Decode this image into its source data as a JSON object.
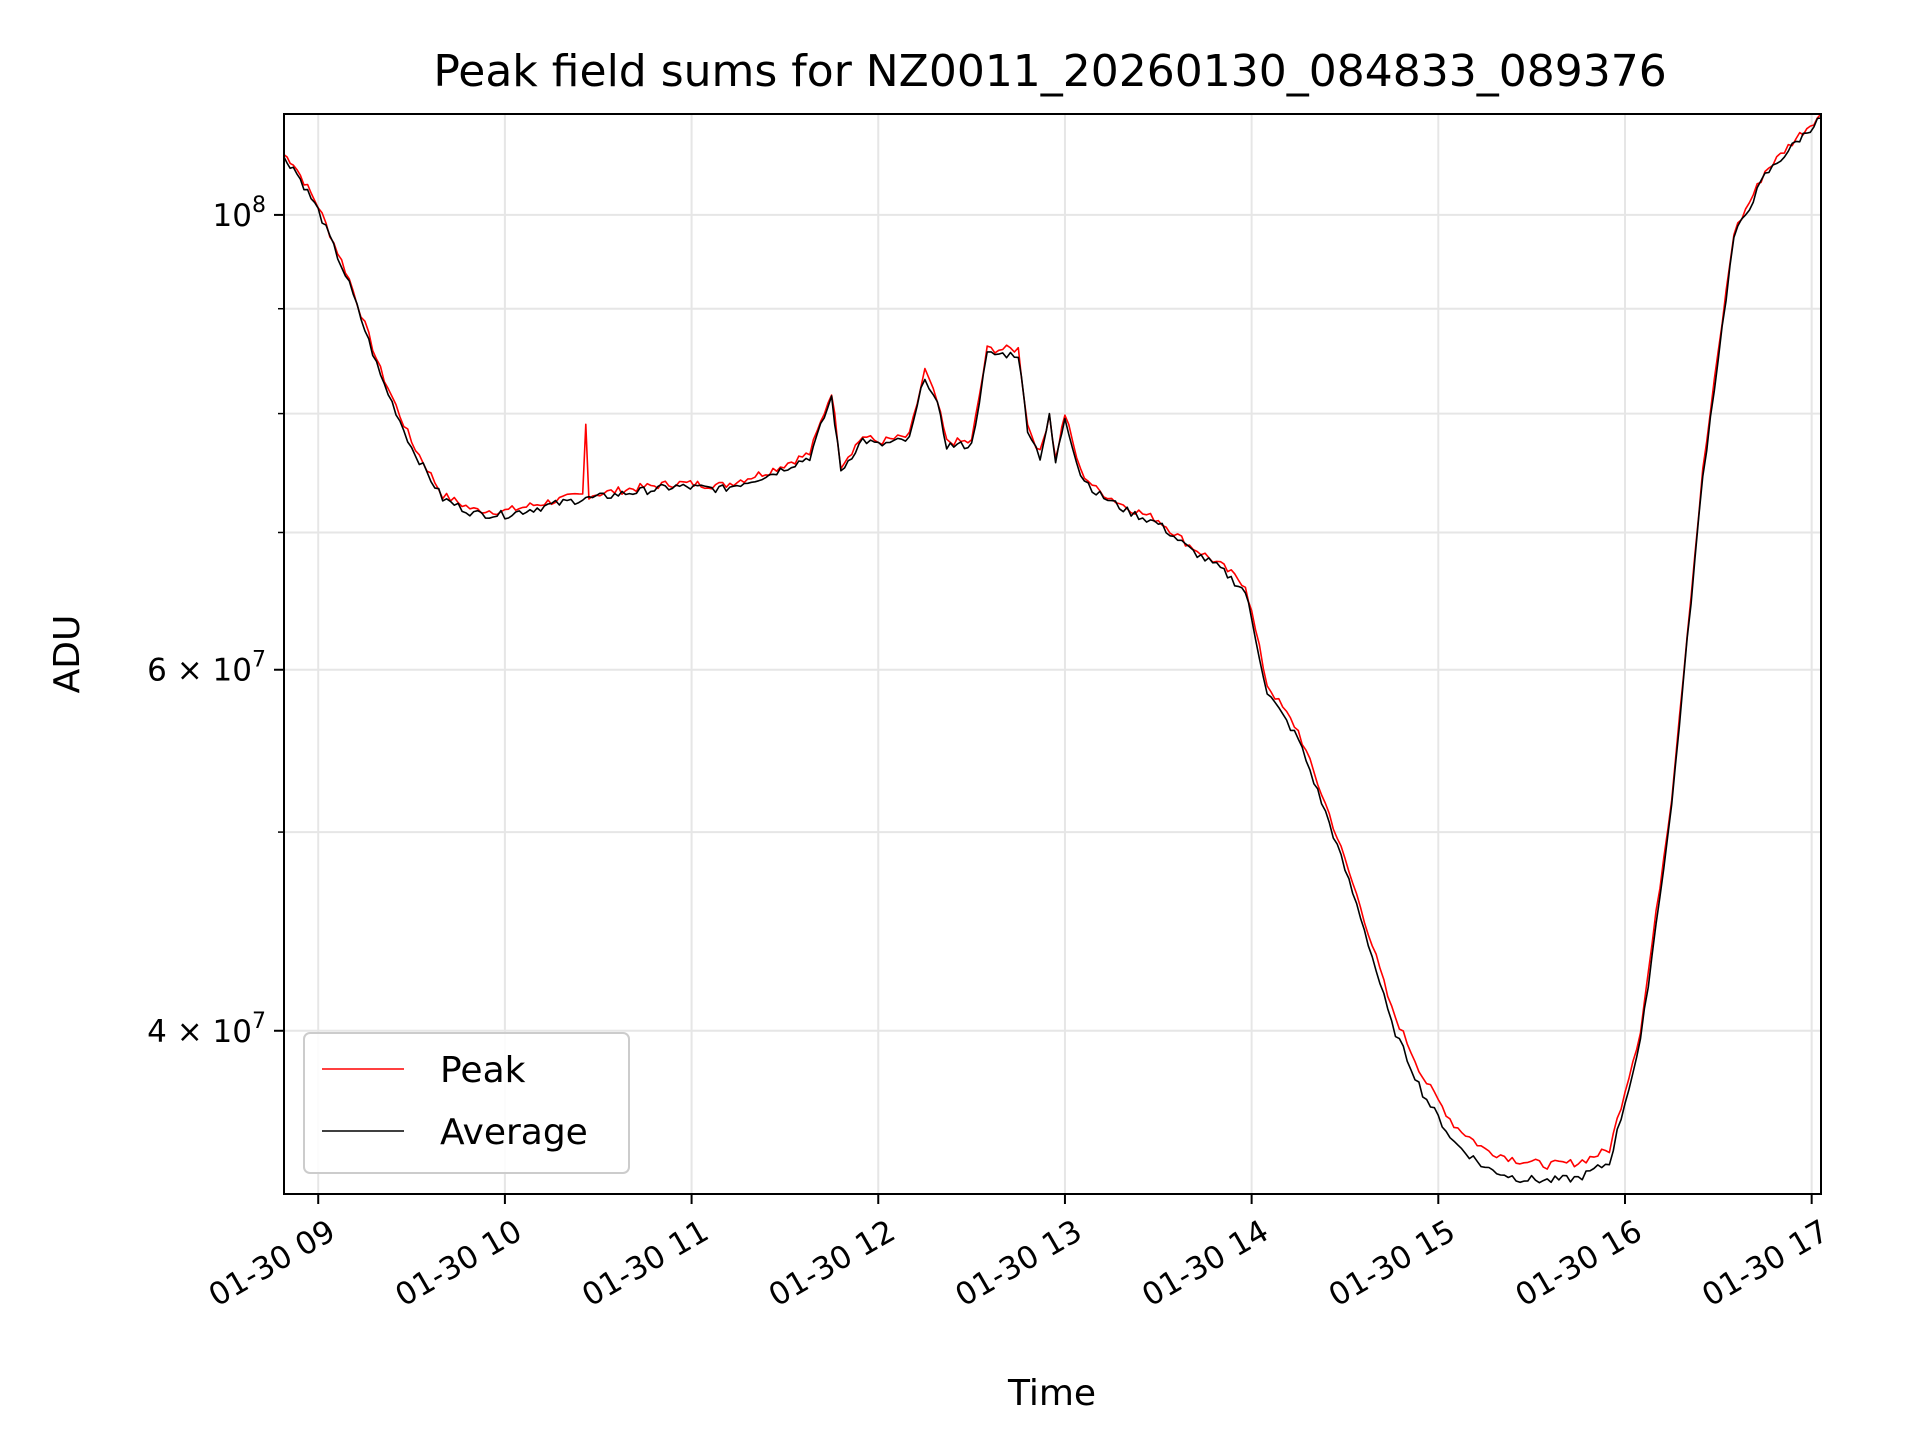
{
  "chart_data": {
    "type": "line",
    "title": "Peak field sums for NZ0011_20260130_084833_089376",
    "xlabel": "Time",
    "ylabel": "ADU",
    "y_scale": "log",
    "grid": true,
    "legend_position": "lower-left",
    "xlim": [
      "2026-01-30 08:49",
      "2026-01-30 17:03"
    ],
    "ylim": [
      33300000,
      112000000
    ],
    "x_ticks": [
      "01-30 09",
      "01-30 10",
      "01-30 11",
      "01-30 12",
      "01-30 13",
      "01-30 14",
      "01-30 15",
      "01-30 16",
      "01-30 17"
    ],
    "y_ticks": [
      {
        "value": 40000000,
        "label": "4 × 10",
        "exponent": "7"
      },
      {
        "value": 60000000,
        "label": "6 × 10",
        "exponent": "7"
      },
      {
        "value": 100000000,
        "label": "10",
        "exponent": "8"
      }
    ],
    "series": [
      {
        "name": "Peak",
        "color": "#ff0000",
        "x": [
          "2026-01-30 08:49",
          "2026-01-30 08:52",
          "2026-01-30 09:00",
          "2026-01-30 09:10",
          "2026-01-30 09:20",
          "2026-01-30 09:30",
          "2026-01-30 09:40",
          "2026-01-30 09:50",
          "2026-01-30 10:00",
          "2026-01-30 10:15",
          "2026-01-30 10:25",
          "2026-01-30 10:26",
          "2026-01-30 10:27",
          "2026-01-30 10:40",
          "2026-01-30 10:55",
          "2026-01-30 11:10",
          "2026-01-30 11:25",
          "2026-01-30 11:38",
          "2026-01-30 11:45",
          "2026-01-30 11:48",
          "2026-01-30 11:55",
          "2026-01-30 12:00",
          "2026-01-30 12:10",
          "2026-01-30 12:15",
          "2026-01-30 12:19",
          "2026-01-30 12:22",
          "2026-01-30 12:30",
          "2026-01-30 12:35",
          "2026-01-30 12:45",
          "2026-01-30 12:48",
          "2026-01-30 12:52",
          "2026-01-30 12:55",
          "2026-01-30 12:57",
          "2026-01-30 13:00",
          "2026-01-30 13:05",
          "2026-01-30 13:10",
          "2026-01-30 13:20",
          "2026-01-30 13:30",
          "2026-01-30 13:40",
          "2026-01-30 13:50",
          "2026-01-30 13:58",
          "2026-01-30 14:00",
          "2026-01-30 14:05",
          "2026-01-30 14:15",
          "2026-01-30 14:25",
          "2026-01-30 14:35",
          "2026-01-30 14:45",
          "2026-01-30 14:55",
          "2026-01-30 15:05",
          "2026-01-30 15:15",
          "2026-01-30 15:25",
          "2026-01-30 15:35",
          "2026-01-30 15:45",
          "2026-01-30 15:55",
          "2026-01-30 16:05",
          "2026-01-30 16:15",
          "2026-01-30 16:25",
          "2026-01-30 16:35",
          "2026-01-30 16:45",
          "2026-01-30 16:55",
          "2026-01-30 17:03"
        ],
        "y": [
          107000000,
          106000000,
          101000000,
          93000000,
          84000000,
          77500000,
          73000000,
          71800000,
          71700000,
          72500000,
          73000000,
          79000000,
          73000000,
          73500000,
          74000000,
          73800000,
          75000000,
          76500000,
          82000000,
          75500000,
          78000000,
          77500000,
          78000000,
          84000000,
          81000000,
          77500000,
          77500000,
          86000000,
          86000000,
          79000000,
          76500000,
          80000000,
          76000000,
          80000000,
          75000000,
          73500000,
          72000000,
          71000000,
          69000000,
          67500000,
          66000000,
          64000000,
          59000000,
          56000000,
          51000000,
          46000000,
          41000000,
          38000000,
          36000000,
          35000000,
          34600000,
          34400000,
          34500000,
          35000000,
          40000000,
          52000000,
          75000000,
          98000000,
          105000000,
          109000000,
          112000000
        ]
      },
      {
        "name": "Average",
        "color": "#000000",
        "x": [
          "2026-01-30 08:49",
          "2026-01-30 08:52",
          "2026-01-30 09:00",
          "2026-01-30 09:10",
          "2026-01-30 09:20",
          "2026-01-30 09:30",
          "2026-01-30 09:40",
          "2026-01-30 09:50",
          "2026-01-30 10:00",
          "2026-01-30 10:15",
          "2026-01-30 10:25",
          "2026-01-30 10:26",
          "2026-01-30 10:27",
          "2026-01-30 10:40",
          "2026-01-30 10:55",
          "2026-01-30 11:10",
          "2026-01-30 11:25",
          "2026-01-30 11:38",
          "2026-01-30 11:45",
          "2026-01-30 11:48",
          "2026-01-30 11:55",
          "2026-01-30 12:00",
          "2026-01-30 12:10",
          "2026-01-30 12:15",
          "2026-01-30 12:19",
          "2026-01-30 12:22",
          "2026-01-30 12:30",
          "2026-01-30 12:35",
          "2026-01-30 12:45",
          "2026-01-30 12:48",
          "2026-01-30 12:52",
          "2026-01-30 12:55",
          "2026-01-30 12:57",
          "2026-01-30 13:00",
          "2026-01-30 13:05",
          "2026-01-30 13:10",
          "2026-01-30 13:20",
          "2026-01-30 13:30",
          "2026-01-30 13:40",
          "2026-01-30 13:50",
          "2026-01-30 13:58",
          "2026-01-30 14:00",
          "2026-01-30 14:05",
          "2026-01-30 14:15",
          "2026-01-30 14:25",
          "2026-01-30 14:35",
          "2026-01-30 14:45",
          "2026-01-30 14:55",
          "2026-01-30 15:05",
          "2026-01-30 15:15",
          "2026-01-30 15:25",
          "2026-01-30 15:35",
          "2026-01-30 15:45",
          "2026-01-30 15:55",
          "2026-01-30 16:05",
          "2026-01-30 16:15",
          "2026-01-30 16:25",
          "2026-01-30 16:35",
          "2026-01-30 16:45",
          "2026-01-30 16:55",
          "2026-01-30 17:03"
        ],
        "y": [
          106500000,
          105500000,
          100500000,
          92500000,
          83500000,
          77000000,
          72700000,
          71500000,
          71400000,
          72200000,
          72700000,
          72800000,
          72700000,
          73200000,
          73700000,
          73500000,
          74700000,
          76200000,
          81500000,
          75000000,
          77700000,
          77200000,
          77700000,
          83500000,
          80700000,
          77200000,
          77200000,
          85500000,
          85500000,
          78700000,
          76200000,
          79700000,
          75700000,
          79700000,
          74700000,
          73200000,
          71700000,
          70700000,
          68700000,
          67200000,
          65500000,
          63500000,
          58500000,
          55500000,
          50500000,
          45500000,
          40300000,
          37300000,
          35300000,
          34300000,
          33900000,
          33800000,
          33900000,
          34500000,
          39500000,
          51500000,
          74500000,
          97500000,
          104500000,
          108500000,
          111500000
        ]
      }
    ]
  }
}
